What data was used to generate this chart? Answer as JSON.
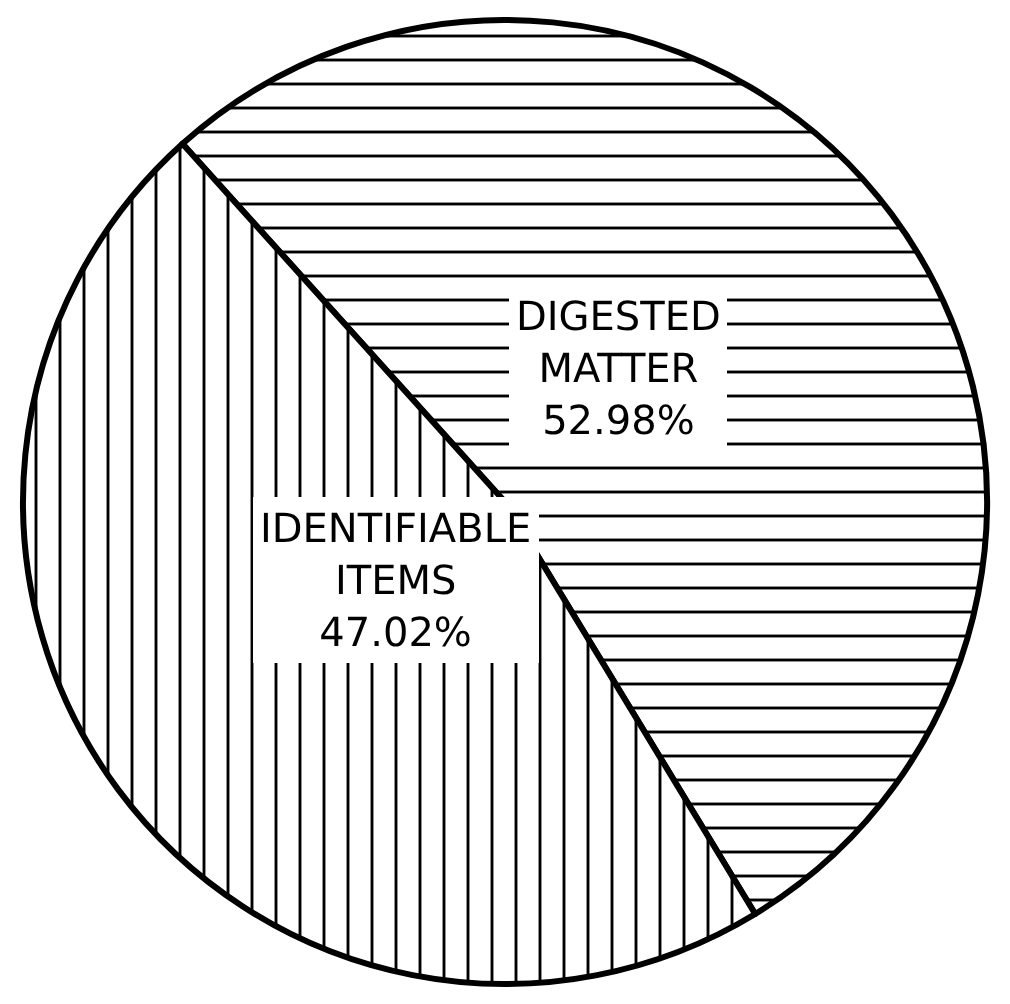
{
  "chart_data": {
    "type": "pie",
    "categories": [
      "DIGESTED MATTER",
      "IDENTIFIABLE ITEMS"
    ],
    "values": [
      52.98,
      47.02
    ],
    "value_labels": [
      "52.98%",
      "47.02%"
    ],
    "colors": [
      "#000000",
      "#000000"
    ],
    "legend": false
  }
}
